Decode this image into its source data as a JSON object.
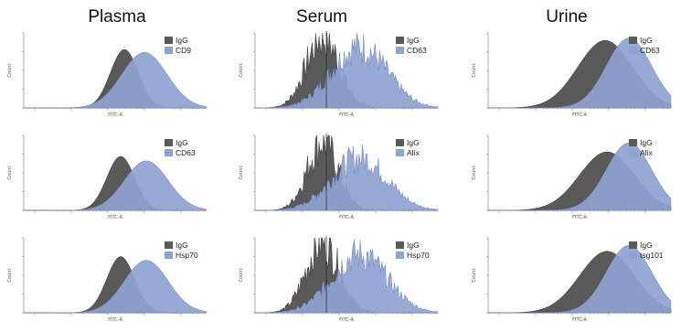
{
  "column_titles": [
    "Plasma",
    "Serum",
    "Urine"
  ],
  "axis_text": {
    "y": "Count",
    "x": "FITC-A"
  },
  "colors": {
    "igg": "#595959",
    "marker": "#8ea3d1",
    "marker_edge": "#6f86bb"
  },
  "chart_data": [
    {
      "type": "area",
      "sample": "Plasma",
      "legend": [
        "IgG",
        "CD9"
      ],
      "x_scale": "log",
      "xlim": [
        0.5,
        50000
      ],
      "series": [
        {
          "name": "IgG",
          "peak_log10": 2.45,
          "width": 0.38,
          "height": 0.78,
          "noise": 0
        },
        {
          "name": "CD9",
          "peak_log10": 3.0,
          "width": 0.62,
          "height": 0.74,
          "noise": 0
        }
      ]
    },
    {
      "type": "area",
      "sample": "Serum",
      "legend": [
        "IgG",
        "CD63"
      ],
      "x_scale": "log",
      "xlim": [
        0.5,
        50000
      ],
      "series": [
        {
          "name": "IgG",
          "peak_log10": 1.55,
          "width": 0.45,
          "height": 0.95,
          "noise": 0.35
        },
        {
          "name": "CD63",
          "peak_log10": 2.55,
          "width": 0.75,
          "height": 0.82,
          "noise": 0.3
        }
      ]
    },
    {
      "type": "area",
      "sample": "Urine",
      "legend": [
        "IgG",
        "CD63"
      ],
      "x_scale": "log",
      "xlim": [
        0.5,
        50000
      ],
      "series": [
        {
          "name": "IgG",
          "peak_log10": 2.9,
          "width": 0.75,
          "height": 0.9,
          "noise": 0
        },
        {
          "name": "CD63",
          "peak_log10": 3.55,
          "width": 0.62,
          "height": 0.93,
          "noise": 0
        }
      ]
    },
    {
      "type": "area",
      "sample": "Plasma",
      "legend": [
        "IgG",
        "CD63"
      ],
      "x_scale": "log",
      "xlim": [
        0.5,
        50000
      ],
      "series": [
        {
          "name": "IgG",
          "peak_log10": 2.35,
          "width": 0.38,
          "height": 0.72,
          "noise": 0
        },
        {
          "name": "CD63",
          "peak_log10": 3.05,
          "width": 0.6,
          "height": 0.66,
          "noise": 0
        }
      ]
    },
    {
      "type": "area",
      "sample": "Serum",
      "legend": [
        "IgG",
        "Alix"
      ],
      "x_scale": "log",
      "xlim": [
        0.5,
        50000
      ],
      "series": [
        {
          "name": "IgG",
          "peak_log10": 1.55,
          "width": 0.42,
          "height": 0.92,
          "noise": 0.35
        },
        {
          "name": "Alix",
          "peak_log10": 2.55,
          "width": 0.75,
          "height": 0.7,
          "noise": 0.3
        }
      ]
    },
    {
      "type": "area",
      "sample": "Urine",
      "legend": [
        "IgG",
        "Alix"
      ],
      "x_scale": "log",
      "xlim": [
        0.5,
        50000
      ],
      "series": [
        {
          "name": "IgG",
          "peak_log10": 2.95,
          "width": 0.75,
          "height": 0.78,
          "noise": 0
        },
        {
          "name": "Alix",
          "peak_log10": 3.55,
          "width": 0.62,
          "height": 0.9,
          "noise": 0
        }
      ]
    },
    {
      "type": "area",
      "sample": "Plasma",
      "legend": [
        "IgG",
        "Hsp70"
      ],
      "x_scale": "log",
      "xlim": [
        0.5,
        50000
      ],
      "series": [
        {
          "name": "IgG",
          "peak_log10": 2.35,
          "width": 0.38,
          "height": 0.75,
          "noise": 0
        },
        {
          "name": "Hsp70",
          "peak_log10": 3.05,
          "width": 0.6,
          "height": 0.7,
          "noise": 0
        }
      ]
    },
    {
      "type": "area",
      "sample": "Serum",
      "legend": [
        "IgG",
        "Hsp70"
      ],
      "x_scale": "log",
      "xlim": [
        0.5,
        50000
      ],
      "series": [
        {
          "name": "IgG",
          "peak_log10": 1.55,
          "width": 0.45,
          "height": 0.95,
          "noise": 0.35
        },
        {
          "name": "Hsp70",
          "peak_log10": 2.55,
          "width": 0.75,
          "height": 0.78,
          "noise": 0.3
        }
      ]
    },
    {
      "type": "area",
      "sample": "Urine",
      "legend": [
        "IgG",
        "tsg101"
      ],
      "x_scale": "log",
      "xlim": [
        0.5,
        50000
      ],
      "series": [
        {
          "name": "IgG",
          "peak_log10": 2.95,
          "width": 0.75,
          "height": 0.82,
          "noise": 0
        },
        {
          "name": "tsg101",
          "peak_log10": 3.55,
          "width": 0.62,
          "height": 0.9,
          "noise": 0
        }
      ]
    }
  ]
}
